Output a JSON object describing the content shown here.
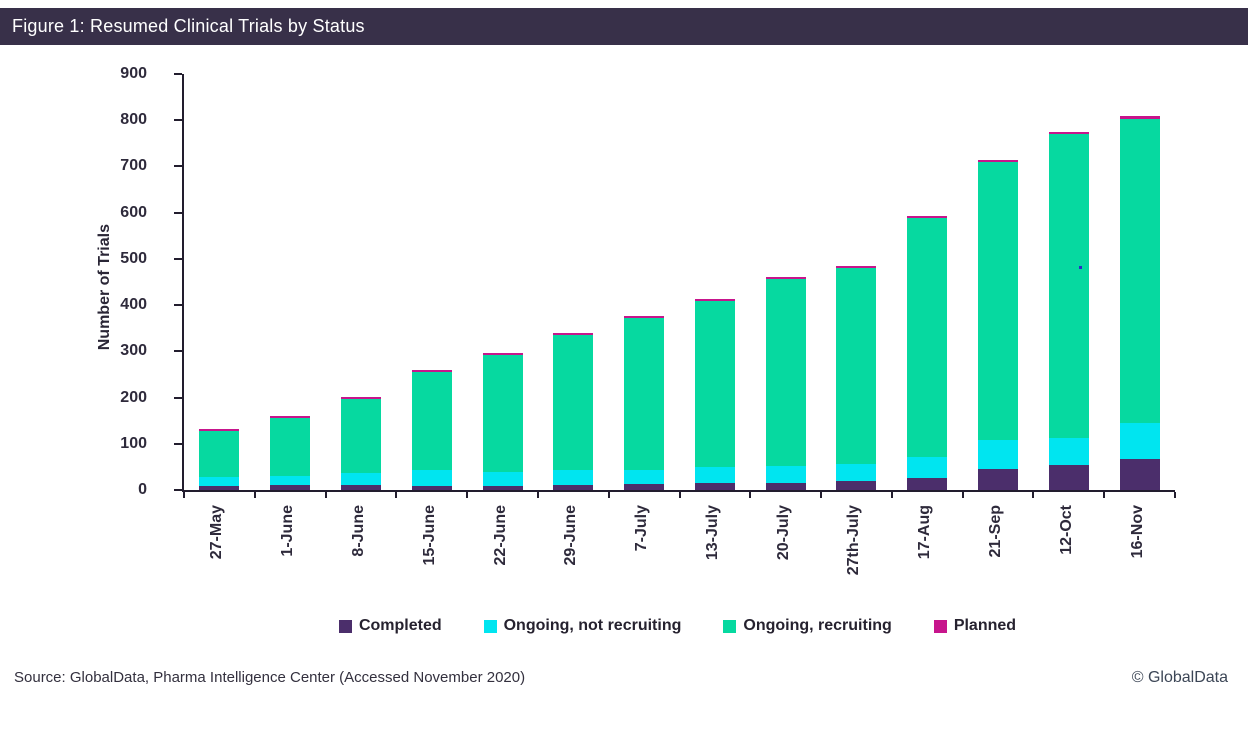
{
  "title_bar": {
    "text": "Figure 1: Resumed Clinical Trials by Status"
  },
  "chart_data": {
    "type": "bar",
    "stacked": true,
    "title": "Figure 1: Resumed Clinical Trials by Status",
    "ylabel": "Number of Trials",
    "xlabel": "",
    "ylim": [
      0,
      900
    ],
    "y_tick_step": 100,
    "y_ticks": [
      0,
      100,
      200,
      300,
      400,
      500,
      600,
      700,
      800,
      900
    ],
    "grid": false,
    "legend_position": "bottom",
    "categories": [
      "27-May",
      "1-June",
      "8-June",
      "15-June",
      "22-June",
      "29-June",
      "7-July",
      "13-July",
      "20-July",
      "27th-July",
      "17-Aug",
      "21-Sep",
      "12-Oct",
      "16-Nov"
    ],
    "series": [
      {
        "name": "Completed",
        "color": "#4B2E6B",
        "values": [
          8,
          10,
          10,
          9,
          8,
          10,
          14,
          16,
          16,
          20,
          26,
          46,
          54,
          67
        ]
      },
      {
        "name": "Ongoing, not recruiting",
        "color": "#00E5F0",
        "values": [
          20,
          20,
          27,
          34,
          31,
          33,
          29,
          33,
          36,
          36,
          45,
          62,
          59,
          78
        ]
      },
      {
        "name": "Ongoing, recruiting",
        "color": "#06D9A0",
        "values": [
          100,
          126,
          160,
          212,
          254,
          293,
          330,
          360,
          404,
          425,
          518,
          602,
          657,
          658
        ]
      },
      {
        "name": "Planned",
        "color": "#C7158C",
        "values": [
          5,
          4,
          3,
          4,
          3,
          3,
          2,
          2,
          2,
          2,
          3,
          4,
          4,
          6
        ]
      }
    ],
    "totals": [
      133,
      160,
      200,
      259,
      296,
      339,
      375,
      411,
      458,
      483,
      592,
      714,
      774,
      809
    ]
  },
  "footer": {
    "source": "Source: GlobalData, Pharma Intelligence Center (Accessed November 2020)",
    "copyright": "© GlobalData"
  },
  "colors": {
    "title_bar_bg": "#383049",
    "title_text": "#FFFFFF",
    "axis": "#221D2E",
    "tick_label": "#2E2A3B"
  }
}
